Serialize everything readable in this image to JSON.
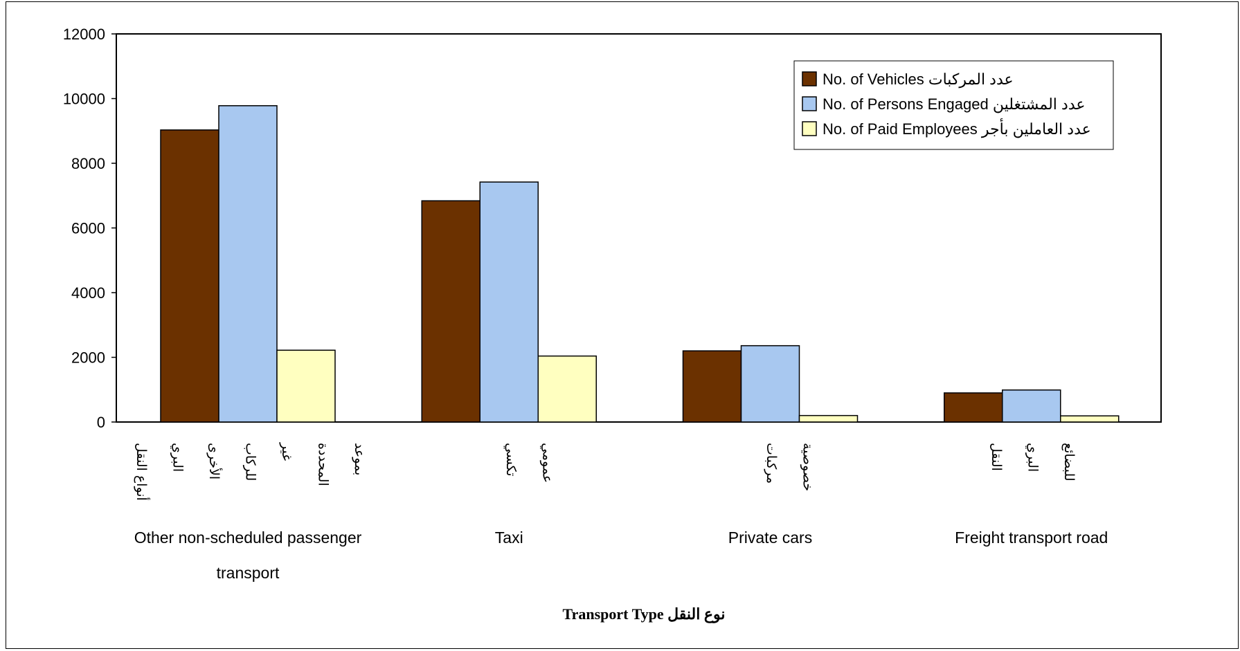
{
  "chart_data": {
    "type": "bar",
    "title": "",
    "xlabel": "نوع النقل Transport Type",
    "ylabel": "",
    "ylim": [
      0,
      12000
    ],
    "yticks": [
      0,
      2000,
      4000,
      6000,
      8000,
      10000,
      12000
    ],
    "categories": [
      {
        "label_en_lines": [
          "Other non-scheduled passenger",
          "transport"
        ],
        "label_ar_words": [
          "أنواع النقل",
          "البري",
          "الأخرى",
          "للركاب",
          "غير",
          "المحددة",
          "بموعد"
        ]
      },
      {
        "label_en_lines": [
          "Taxi"
        ],
        "label_ar_words": [
          "تكسي",
          "عمومي"
        ]
      },
      {
        "label_en_lines": [
          "Private cars"
        ],
        "label_ar_words": [
          "مركبات",
          "خصوصية"
        ]
      },
      {
        "label_en_lines": [
          "Freight transport road"
        ],
        "label_ar_words": [
          "النقل",
          "البري",
          "للبضائع"
        ]
      }
    ],
    "series": [
      {
        "name": "No. of Vehicles عدد  المركبات",
        "color": "#6b3100",
        "values": [
          9030,
          6840,
          2200,
          900
        ]
      },
      {
        "name": "No. of Persons  Engaged عدد المشتغلين",
        "color": "#a8c8f0",
        "values": [
          9780,
          7420,
          2360,
          990
        ]
      },
      {
        "name": "No. of Paid Employees عدد العاملين بأجر",
        "color": "#ffffc0",
        "values": [
          2220,
          2040,
          200,
          190
        ]
      }
    ],
    "grid": false,
    "legend_position": "top-right"
  }
}
